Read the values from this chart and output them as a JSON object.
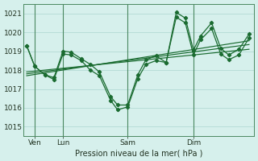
{
  "bg_color": "#d6f0ec",
  "plot_bg_color": "#d6f0ec",
  "grid_color": "#b8ddd8",
  "line_color": "#1a6b30",
  "ylabel": "Pression niveau de la mer( hPa )",
  "ylim": [
    1014.5,
    1021.5
  ],
  "yticks": [
    1015,
    1016,
    1017,
    1018,
    1019,
    1020,
    1021
  ],
  "xtick_labels": [
    "Ven",
    "Lun",
    "Sam",
    "Dim"
  ],
  "xtick_positions": [
    8,
    36,
    100,
    165
  ],
  "vline_positions": [
    8,
    36,
    100,
    165
  ],
  "series": [
    {
      "x": [
        0,
        8,
        18,
        27,
        36,
        44,
        54,
        63,
        72,
        83,
        90,
        100,
        110,
        118,
        128,
        138,
        148,
        157,
        165,
        172,
        183,
        192,
        200,
        210,
        220
      ],
      "y": [
        1019.3,
        1018.2,
        1017.75,
        1017.6,
        1019.0,
        1018.95,
        1018.6,
        1018.3,
        1017.9,
        1016.6,
        1016.15,
        1016.15,
        1017.75,
        1018.55,
        1018.75,
        1018.4,
        1021.05,
        1020.75,
        1019.05,
        1019.8,
        1020.5,
        1019.15,
        1018.8,
        1019.1,
        1019.9
      ],
      "marker": true
    },
    {
      "x": [
        0,
        8,
        18,
        27,
        36,
        44,
        54,
        63,
        72,
        83,
        90,
        100,
        110,
        118,
        128,
        138,
        148,
        157,
        165,
        172,
        183,
        192,
        200,
        210,
        220
      ],
      "y": [
        1019.3,
        1018.2,
        1017.75,
        1017.5,
        1018.85,
        1018.8,
        1018.5,
        1018.0,
        1017.7,
        1016.4,
        1015.9,
        1016.05,
        1017.55,
        1018.3,
        1018.5,
        1018.4,
        1020.8,
        1020.5,
        1018.8,
        1019.6,
        1020.2,
        1018.85,
        1018.55,
        1018.8,
        1019.7
      ],
      "marker": true
    },
    {
      "x": [
        0,
        220
      ],
      "y": [
        1017.7,
        1019.55
      ],
      "marker": false
    },
    {
      "x": [
        0,
        220
      ],
      "y": [
        1017.8,
        1019.35
      ],
      "marker": false
    },
    {
      "x": [
        0,
        220
      ],
      "y": [
        1017.9,
        1019.1
      ],
      "marker": false
    }
  ],
  "figsize": [
    3.2,
    2.0
  ],
  "dpi": 100
}
